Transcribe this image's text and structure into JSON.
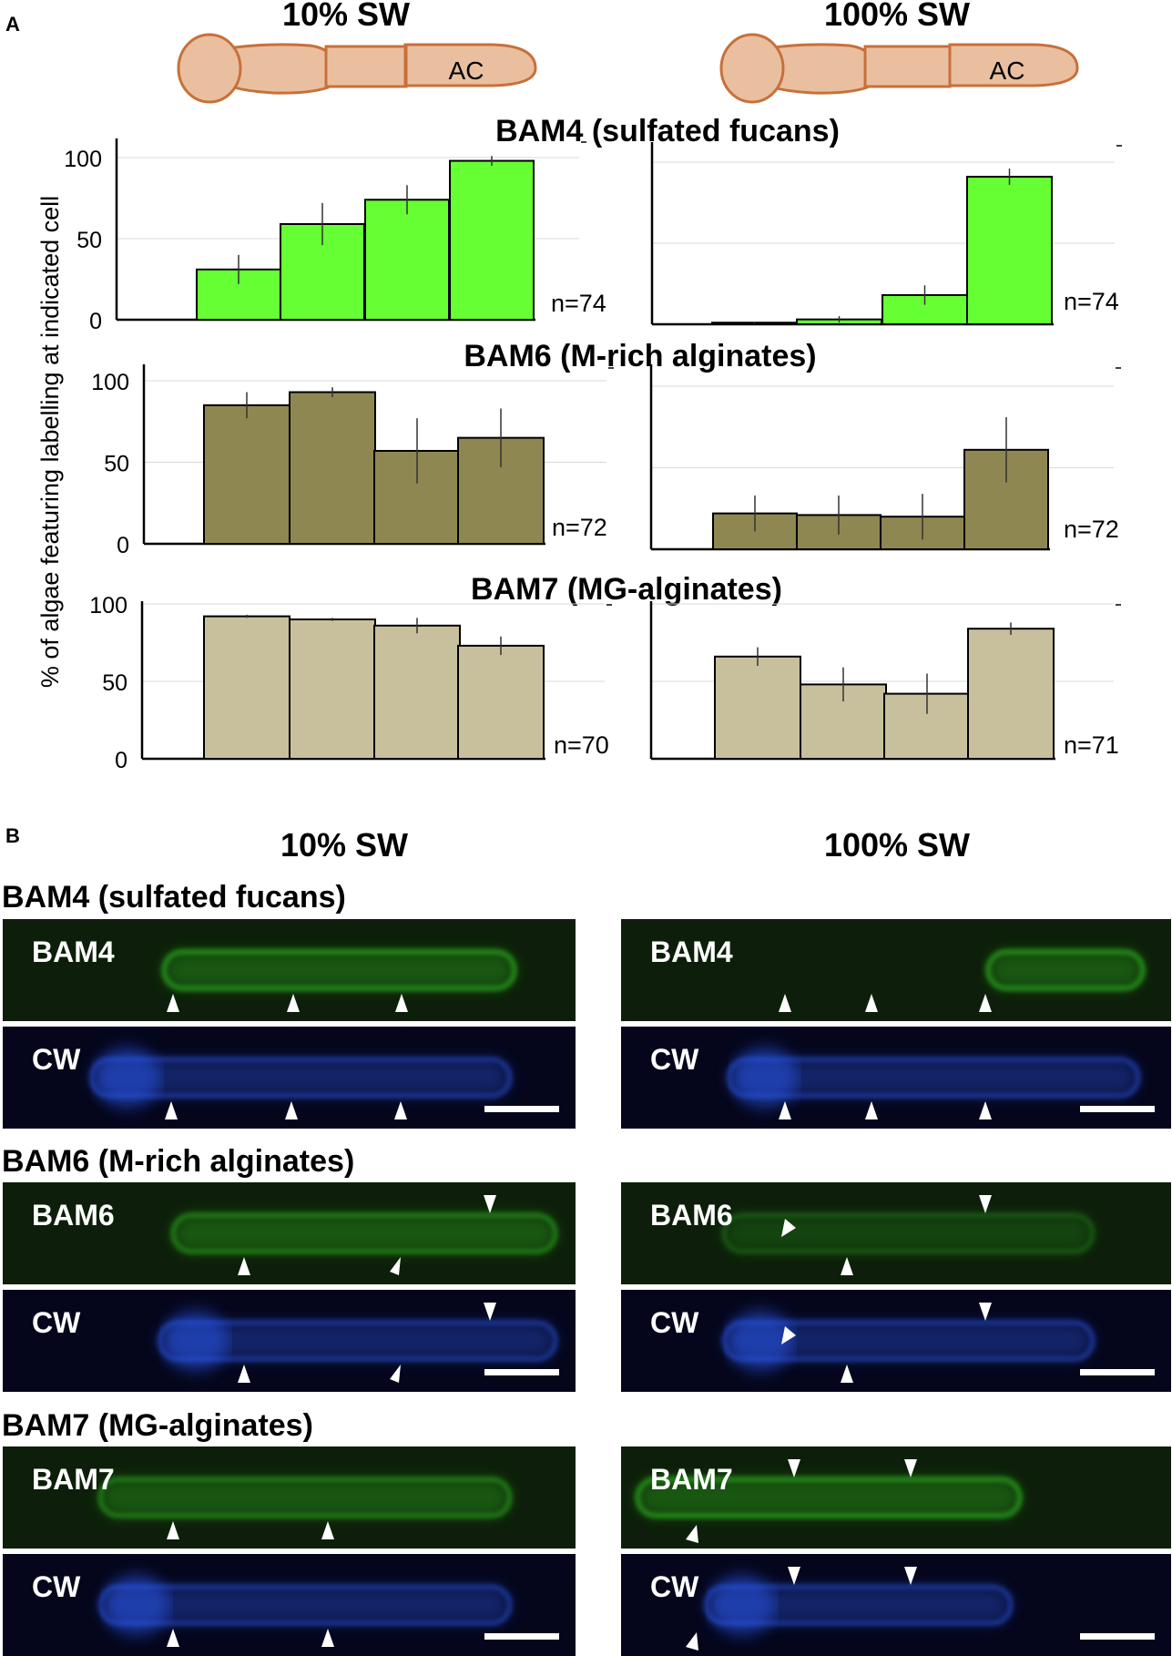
{
  "panel_a": {
    "label": "A",
    "conditions": [
      "10% SW",
      "100% SW"
    ],
    "cell_label": "AC",
    "y_axis_label": "% of algae featuring labelling at indicated cell"
  },
  "panel_b": {
    "label": "B",
    "conditions": [
      "10% SW",
      "100% SW"
    ],
    "cw_label": "CW"
  },
  "colors": {
    "bam4_bar": "#66ff33",
    "bam6_bar": "#8f8752",
    "bam7_bar": "#c8c09c",
    "cell_fill": "#e9bfa0",
    "cell_stroke": "#c8703a",
    "green_fluor": "#33cc22",
    "blue_fluor": "#2f5fff"
  },
  "chart_data": [
    {
      "type": "bar",
      "title": "BAM4 (sulfated fucans)",
      "condition": "10% SW",
      "n": "n=74",
      "yticks": [
        "100",
        "50",
        "0"
      ],
      "ylim": [
        0,
        112
      ],
      "values": [
        31,
        59,
        74,
        98
      ],
      "errors": [
        9,
        13,
        9,
        3
      ]
    },
    {
      "type": "bar",
      "title": "BAM4 (sulfated fucans)",
      "condition": "100% SW",
      "n": "n=74",
      "yticks": [],
      "ylim": [
        0,
        112
      ],
      "values": [
        1,
        3,
        18,
        91
      ],
      "errors": [
        0.5,
        2,
        6,
        5
      ]
    },
    {
      "type": "bar",
      "title": "BAM6 (M-rich alginates)",
      "condition": "10% SW",
      "n": "n=72",
      "yticks": [
        "100",
        "50",
        "0"
      ],
      "ylim": [
        0,
        112
      ],
      "values": [
        85,
        93,
        57,
        65
      ],
      "errors": [
        8,
        3,
        20,
        18
      ]
    },
    {
      "type": "bar",
      "title": "BAM6 (M-rich alginates)",
      "condition": "100% SW",
      "n": "n=72",
      "yticks": [],
      "ylim": [
        0,
        112
      ],
      "values": [
        22,
        21,
        20,
        61
      ],
      "errors": [
        11,
        12,
        14,
        20
      ]
    },
    {
      "type": "bar",
      "title": "BAM7 (MG-alginates)",
      "condition": "10% SW",
      "n": "n=70",
      "yticks": [
        "100",
        "50",
        "0"
      ],
      "ylim": [
        0,
        112
      ],
      "values": [
        92,
        90,
        86,
        73
      ],
      "errors": [
        1,
        1,
        5,
        6
      ]
    },
    {
      "type": "bar",
      "title": "BAM7 (MG-alginates)",
      "condition": "100% SW",
      "n": "n=71",
      "yticks": [],
      "ylim": [
        0,
        112
      ],
      "values": [
        66,
        48,
        42,
        84
      ],
      "errors": [
        6,
        11,
        13,
        4
      ]
    }
  ],
  "micrograph_sections": [
    {
      "title": "BAM4 (sulfated fucans)",
      "stain": "BAM4"
    },
    {
      "title": "BAM6 (M-rich alginates)",
      "stain": "BAM6"
    },
    {
      "title": "BAM7 (MG-alginates)",
      "stain": "BAM7"
    }
  ]
}
